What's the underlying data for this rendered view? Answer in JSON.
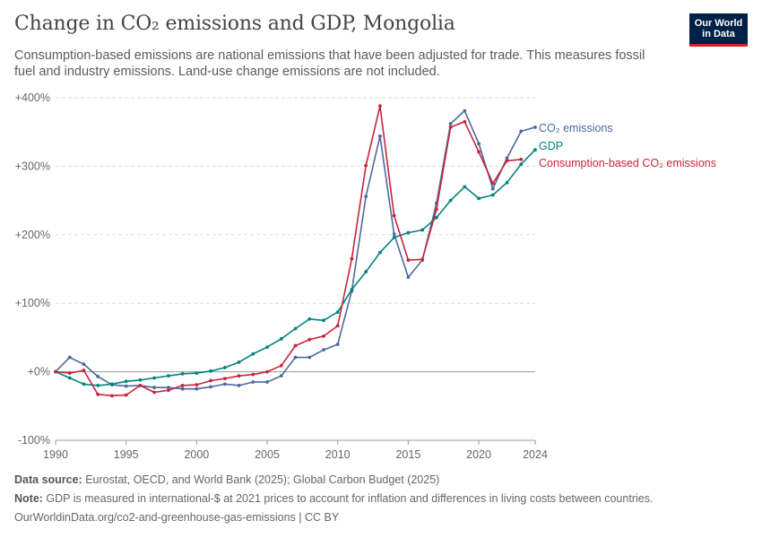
{
  "header": {
    "title": "Change in CO₂ emissions and GDP, Mongolia",
    "subtitle": "Consumption-based emissions are national emissions that have been adjusted for trade. This measures fossil fuel and industry emissions. Land-use change emissions are not included.",
    "logo_line1": "Our World",
    "logo_line2": "in Data"
  },
  "footer": {
    "source_label": "Data source:",
    "source_text": " Eurostat, OECD, and World Bank (2025); Global Carbon Budget (2025)",
    "note_label": "Note:",
    "note_text": " GDP is measured in international-$ at 2021 prices to account for inflation and differences in living costs between countries.",
    "url": "OurWorldinData.org/co2-and-greenhouse-gas-emissions | CC BY"
  },
  "colors": {
    "co2": "#4c6a9c",
    "gdp": "#00847e",
    "consumption": "#c8243c",
    "grid": "#dddddd",
    "zero": "#999999"
  },
  "chart_data": {
    "type": "line",
    "xlim": [
      1990,
      2024
    ],
    "ylim": [
      -100,
      400
    ],
    "x_ticks": [
      1990,
      1995,
      2000,
      2005,
      2010,
      2015,
      2020,
      2024
    ],
    "y_ticks": [
      {
        "value": -100,
        "label": "-100%"
      },
      {
        "value": 0,
        "label": "+0%"
      },
      {
        "value": 100,
        "label": "+100%"
      },
      {
        "value": 200,
        "label": "+200%"
      },
      {
        "value": 300,
        "label": "+300%"
      },
      {
        "value": 400,
        "label": "+400%"
      }
    ],
    "grid": true,
    "legend": "right-end labels",
    "series": [
      {
        "name": "CO₂ emissions",
        "color": "#4c6a9c",
        "x": [
          1990,
          1991,
          1992,
          1993,
          1994,
          1995,
          1996,
          1997,
          1998,
          1999,
          2000,
          2001,
          2002,
          2003,
          2004,
          2005,
          2006,
          2007,
          2008,
          2009,
          2010,
          2011,
          2012,
          2013,
          2014,
          2015,
          2016,
          2017,
          2018,
          2019,
          2020,
          2021,
          2022,
          2023,
          2024
        ],
        "y": [
          0,
          21,
          11,
          -7,
          -19,
          -21,
          -20,
          -23,
          -23,
          -25,
          -25,
          -22,
          -18,
          -20,
          -15,
          -15,
          -6,
          21,
          21,
          32,
          40,
          118,
          256,
          344,
          201,
          138,
          163,
          246,
          362,
          381,
          333,
          267,
          312,
          351,
          357
        ]
      },
      {
        "name": "GDP",
        "color": "#00847e",
        "x": [
          1990,
          1991,
          1992,
          1993,
          1994,
          1995,
          1996,
          1997,
          1998,
          1999,
          2000,
          2001,
          2002,
          2003,
          2004,
          2005,
          2006,
          2007,
          2008,
          2009,
          2010,
          2011,
          2012,
          2013,
          2014,
          2015,
          2016,
          2017,
          2018,
          2019,
          2020,
          2021,
          2022,
          2023,
          2024
        ],
        "y": [
          0,
          -9,
          -18,
          -20,
          -18,
          -14,
          -12,
          -9,
          -6,
          -3,
          -2,
          1,
          6,
          14,
          26,
          36,
          48,
          63,
          77,
          75,
          87,
          120,
          146,
          174,
          196,
          203,
          207,
          225,
          250,
          270,
          253,
          258,
          276,
          303,
          324
        ]
      },
      {
        "name": "Consumption-based CO₂ emissions",
        "color": "#c8243c",
        "x": [
          1990,
          1991,
          1992,
          1993,
          1994,
          1995,
          1996,
          1997,
          1998,
          1999,
          2000,
          2001,
          2002,
          2003,
          2004,
          2005,
          2006,
          2007,
          2008,
          2009,
          2010,
          2011,
          2012,
          2013,
          2014,
          2015,
          2016,
          2017,
          2018,
          2019,
          2020,
          2021,
          2022,
          2023
        ],
        "y": [
          0,
          -2,
          2,
          -33,
          -35,
          -34,
          -20,
          -30,
          -27,
          -20,
          -19,
          -13,
          -10,
          -6,
          -4,
          0,
          9,
          38,
          47,
          52,
          67,
          165,
          301,
          388,
          228,
          163,
          164,
          237,
          357,
          365,
          321,
          275,
          308,
          310
        ]
      }
    ]
  }
}
